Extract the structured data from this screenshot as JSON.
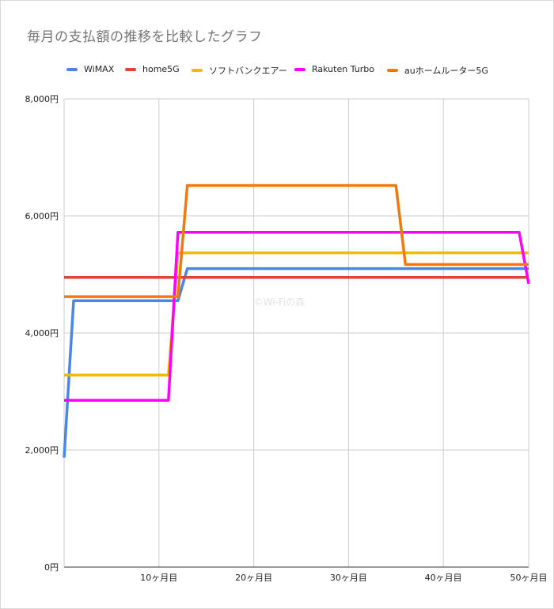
{
  "chart_data": {
    "type": "line",
    "title": "毎月の支払額の推移を比較したグラフ",
    "xlabel": "",
    "ylabel": "",
    "xlim": [
      0,
      49
    ],
    "ylim": [
      0,
      8000
    ],
    "y_ticks": [
      {
        "value": 0,
        "label": "0円"
      },
      {
        "value": 2000,
        "label": "2,000円"
      },
      {
        "value": 4000,
        "label": "4,000円"
      },
      {
        "value": 6000,
        "label": "6,000円"
      },
      {
        "value": 8000,
        "label": "8,000円"
      }
    ],
    "x_ticks": [
      {
        "value": 10,
        "label": "10ヶ月目"
      },
      {
        "value": 20,
        "label": "20ヶ月目"
      },
      {
        "value": 30,
        "label": "30ヶ月目"
      },
      {
        "value": 40,
        "label": "40ヶ月目"
      },
      {
        "value": 49,
        "label": "50ヶ月目"
      }
    ],
    "grid": true,
    "legend_position": "top",
    "watermark": "©Wi-Fiの森",
    "series": [
      {
        "name": "WiMAX",
        "color": "#4a86e8",
        "x": [
          0,
          1,
          12,
          13,
          49
        ],
        "y": [
          1870,
          4550,
          4550,
          5100,
          5100
        ]
      },
      {
        "name": "home5G",
        "color": "#e0462f",
        "x": [
          0,
          49
        ],
        "y": [
          4950,
          4950
        ]
      },
      {
        "name": "ソフトバンクエアー",
        "color": "#f6b800",
        "x": [
          0,
          11,
          12,
          49
        ],
        "y": [
          3280,
          3280,
          5370,
          5370
        ]
      },
      {
        "name": "Rakuten Turbo",
        "color": "#ff00ff",
        "x": [
          0,
          11,
          12,
          48,
          49
        ],
        "y": [
          2850,
          2850,
          5720,
          5720,
          4840
        ]
      },
      {
        "name": "auホームルーター5G",
        "color": "#f07a10",
        "x": [
          0,
          12,
          13,
          35,
          36,
          49
        ],
        "y": [
          4620,
          4620,
          6520,
          6520,
          5170,
          5170
        ]
      }
    ]
  }
}
